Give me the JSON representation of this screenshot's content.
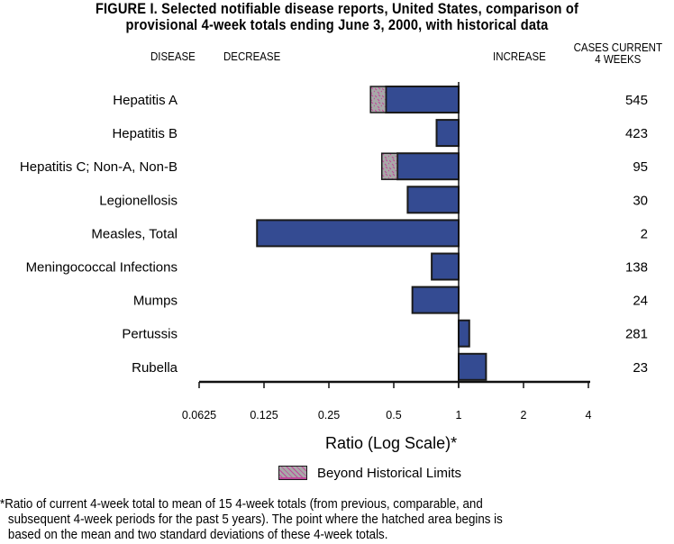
{
  "title": {
    "line1": "FIGURE I. Selected notifiable disease reports, United States, comparison of",
    "line2": "provisional 4-week totals ending June 3, 2000, with historical data"
  },
  "headers": {
    "disease": "DISEASE",
    "decrease": "DECREASE",
    "increase": "INCREASE",
    "cases_line1": "CASES CURRENT",
    "cases_line2": "4 WEEKS"
  },
  "colors": {
    "bar": "#344b92",
    "bar_border": "#1a1a1a",
    "hatch_fill": "#a8a8a8",
    "hatch_pattern": "#c0479a",
    "axis": "#111111"
  },
  "chart_data": {
    "type": "bar",
    "orientation": "horizontal",
    "title": "Selected notifiable disease reports, United States, comparison of provisional 4-week totals ending June 3, 2000, with historical data",
    "xlabel": "Ratio (Log Scale)*",
    "ylabel": "DISEASE",
    "xscale": "log2",
    "xlim": [
      0.0625,
      4
    ],
    "baseline": 1,
    "xticks": [
      0.0625,
      0.125,
      0.25,
      0.5,
      1,
      2,
      4
    ],
    "xtick_labels": [
      "0.0625",
      "0.125",
      "0.25",
      "0.5",
      "1",
      "2",
      "4"
    ],
    "categories": [
      "Hepatitis A",
      "Hepatitis B",
      "Hepatitis C; Non-A, Non-B",
      "Legionellosis",
      "Measles, Total",
      "Meningococcal Infections",
      "Mumps",
      "Pertussis",
      "Rubella"
    ],
    "values": [
      0.39,
      0.79,
      0.44,
      0.58,
      0.116,
      0.75,
      0.61,
      1.12,
      1.34
    ],
    "beyond_historical_limit_start": [
      0.46,
      null,
      0.52,
      null,
      null,
      null,
      null,
      null,
      null
    ],
    "cases_current_4_weeks": [
      545,
      423,
      95,
      30,
      2,
      138,
      24,
      281,
      23
    ],
    "legend": [
      {
        "label": "Beyond Historical Limits",
        "style": "hatched"
      }
    ],
    "legend_position": "bottom-center",
    "grid": false
  },
  "footnote": {
    "line1": "*Ratio of current 4-week total to mean of 15 4-week totals (from previous, comparable, and",
    "line2": "subsequent 4-week periods for the past 5 years). The point where the hatched area begins is",
    "line3": "based on the mean and two standard deviations of these 4-week totals."
  }
}
